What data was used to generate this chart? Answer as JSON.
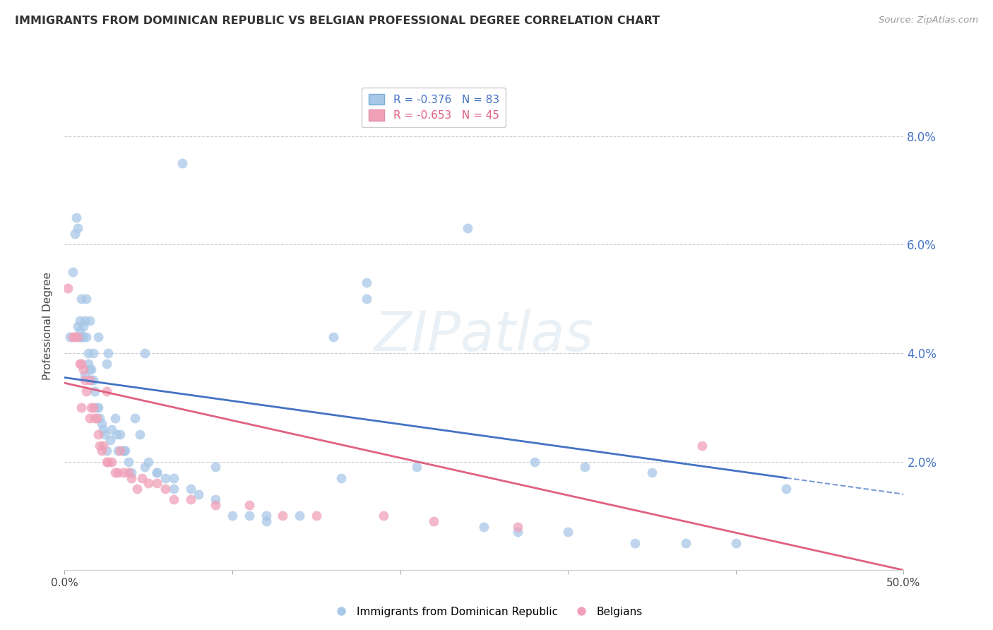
{
  "title": "IMMIGRANTS FROM DOMINICAN REPUBLIC VS BELGIAN PROFESSIONAL DEGREE CORRELATION CHART",
  "source_text": "Source: ZipAtlas.com",
  "ylabel": "Professional Degree",
  "xlim": [
    0.0,
    0.5
  ],
  "ylim": [
    0.0,
    0.09
  ],
  "blue_color": "#a8c8e8",
  "pink_color": "#f0a0b8",
  "blue_line_color": "#4472c4",
  "pink_line_color": "#e06080",
  "blue_R": -0.376,
  "blue_N": 83,
  "pink_R": -0.653,
  "pink_N": 45,
  "legend_label_blue": "Immigrants from Dominican Republic",
  "legend_label_pink": "Belgians",
  "watermark": "ZIPatlas",
  "blue_line_x0": 0.0,
  "blue_line_y0": 0.0355,
  "blue_line_x1": 0.5,
  "blue_line_y1": 0.014,
  "pink_line_x0": 0.0,
  "pink_line_y0": 0.0345,
  "pink_line_x1": 0.5,
  "pink_line_y1": 0.0,
  "blue_scatter_x": [
    0.003,
    0.005,
    0.006,
    0.007,
    0.008,
    0.008,
    0.009,
    0.009,
    0.01,
    0.01,
    0.01,
    0.011,
    0.011,
    0.012,
    0.012,
    0.013,
    0.013,
    0.014,
    0.014,
    0.015,
    0.015,
    0.016,
    0.016,
    0.017,
    0.017,
    0.018,
    0.019,
    0.02,
    0.02,
    0.021,
    0.022,
    0.023,
    0.024,
    0.025,
    0.026,
    0.027,
    0.028,
    0.03,
    0.031,
    0.032,
    0.033,
    0.035,
    0.036,
    0.038,
    0.04,
    0.042,
    0.045,
    0.048,
    0.05,
    0.055,
    0.06,
    0.065,
    0.07,
    0.075,
    0.08,
    0.09,
    0.1,
    0.11,
    0.12,
    0.14,
    0.16,
    0.18,
    0.21,
    0.24,
    0.27,
    0.3,
    0.34,
    0.37,
    0.4,
    0.43,
    0.025,
    0.035,
    0.055,
    0.065,
    0.09,
    0.18,
    0.25,
    0.31,
    0.35,
    0.28,
    0.12,
    0.165,
    0.048
  ],
  "blue_scatter_y": [
    0.043,
    0.055,
    0.062,
    0.065,
    0.045,
    0.063,
    0.044,
    0.046,
    0.043,
    0.043,
    0.05,
    0.043,
    0.045,
    0.036,
    0.046,
    0.043,
    0.05,
    0.038,
    0.04,
    0.037,
    0.046,
    0.035,
    0.037,
    0.035,
    0.04,
    0.033,
    0.03,
    0.03,
    0.043,
    0.028,
    0.027,
    0.026,
    0.025,
    0.038,
    0.04,
    0.024,
    0.026,
    0.028,
    0.025,
    0.022,
    0.025,
    0.022,
    0.022,
    0.02,
    0.018,
    0.028,
    0.025,
    0.019,
    0.02,
    0.018,
    0.017,
    0.015,
    0.075,
    0.015,
    0.014,
    0.013,
    0.01,
    0.01,
    0.009,
    0.01,
    0.043,
    0.05,
    0.019,
    0.063,
    0.007,
    0.007,
    0.005,
    0.005,
    0.005,
    0.015,
    0.022,
    0.022,
    0.018,
    0.017,
    0.019,
    0.053,
    0.008,
    0.019,
    0.018,
    0.02,
    0.01,
    0.017,
    0.04
  ],
  "pink_scatter_x": [
    0.002,
    0.005,
    0.006,
    0.008,
    0.009,
    0.01,
    0.011,
    0.012,
    0.013,
    0.015,
    0.016,
    0.017,
    0.018,
    0.019,
    0.02,
    0.021,
    0.022,
    0.023,
    0.025,
    0.026,
    0.028,
    0.03,
    0.032,
    0.033,
    0.035,
    0.038,
    0.04,
    0.043,
    0.046,
    0.05,
    0.055,
    0.06,
    0.065,
    0.075,
    0.09,
    0.11,
    0.13,
    0.15,
    0.19,
    0.22,
    0.27,
    0.38,
    0.01,
    0.015,
    0.025
  ],
  "pink_scatter_y": [
    0.052,
    0.043,
    0.043,
    0.043,
    0.038,
    0.038,
    0.037,
    0.035,
    0.033,
    0.028,
    0.03,
    0.03,
    0.028,
    0.028,
    0.025,
    0.023,
    0.022,
    0.023,
    0.02,
    0.02,
    0.02,
    0.018,
    0.018,
    0.022,
    0.018,
    0.018,
    0.017,
    0.015,
    0.017,
    0.016,
    0.016,
    0.015,
    0.013,
    0.013,
    0.012,
    0.012,
    0.01,
    0.01,
    0.01,
    0.009,
    0.008,
    0.023,
    0.03,
    0.035,
    0.033
  ]
}
